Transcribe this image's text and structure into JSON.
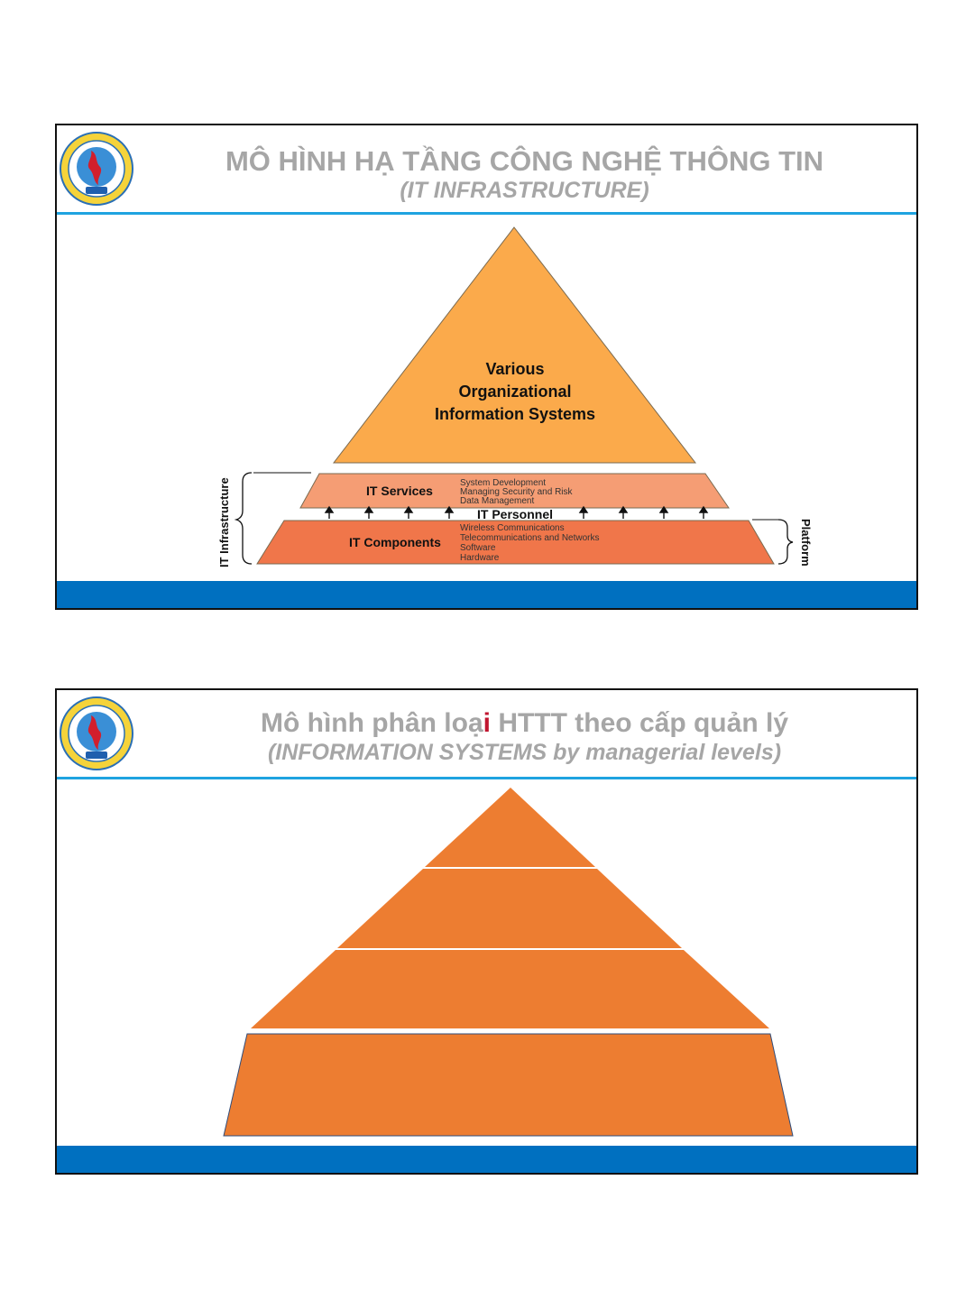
{
  "slide1": {
    "title": "MÔ HÌNH HẠ TẦNG CÔNG NGHỆ THÔNG TIN",
    "subtitle": "(IT INFRASTRUCTURE)",
    "apex_lines": [
      "Various",
      "Organizational",
      "Information Systems"
    ],
    "services": {
      "label": "IT Services",
      "items": [
        "System Development",
        "Managing Security and Risk",
        "Data Management"
      ]
    },
    "personnel_label": "IT Personnel",
    "components": {
      "label": "IT Components",
      "items": [
        "Wireless Communications",
        "Telecommunications and Networks",
        "Software",
        "Hardware"
      ]
    },
    "left_brace_label": "IT Infrastructure",
    "right_brace_label": "Platform"
  },
  "slide2": {
    "title_pre": "Mô hình phân loạ",
    "title_hl": "i",
    "title_post": " HTTT theo cấp quản lý",
    "subtitle": "(INFORMATION SYSTEMS by managerial levels)"
  },
  "colors": {
    "apex": "#fbaa4b",
    "services": "#f59d74",
    "components": "#f0764a",
    "pyramid2": "#ed7d31",
    "rule": "#1fa3e0",
    "footer": "#0070c0",
    "title_gray": "#a6a6a6",
    "highlight": "#c0152f"
  },
  "icons": {
    "logo": "university-seal-logo"
  }
}
